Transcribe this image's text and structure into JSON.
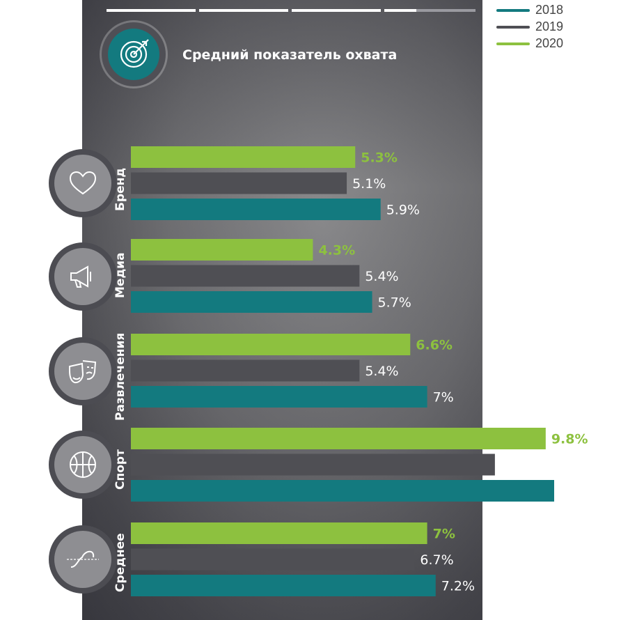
{
  "title": "Средний показатель охвата",
  "legend": [
    {
      "label": "2018",
      "color": "#137a7f"
    },
    {
      "label": "2019",
      "color": "#4f4f54"
    },
    {
      "label": "2020",
      "color": "#8dc13f"
    }
  ],
  "icons": {
    "title": "target-icon",
    "categories": [
      "heart-icon",
      "megaphone-icon",
      "theater-masks-icon",
      "basketball-icon",
      "wave-icon"
    ]
  },
  "chart_data": {
    "type": "bar",
    "orientation": "horizontal",
    "title": "Средний показатель охвата",
    "categories": [
      "Бренд",
      "Медиа",
      "Развлечения",
      "Спорт",
      "Среднее"
    ],
    "series": [
      {
        "name": "2020",
        "color": "#8dc13f",
        "values": [
          5.3,
          4.3,
          6.6,
          9.8,
          7
        ],
        "labels": [
          "5.3%",
          "4.3%",
          "6.6%",
          "9.8%",
          "7%"
        ]
      },
      {
        "name": "2019",
        "color": "#4f4f54",
        "values": [
          5.1,
          5.4,
          5.4,
          8.6,
          6.7
        ],
        "labels": [
          "5.1%",
          "5.4%",
          "5.4%",
          "8.6%",
          "6.7%"
        ]
      },
      {
        "name": "2018",
        "color": "#137a7f",
        "values": [
          5.9,
          5.7,
          7,
          10,
          7.2
        ],
        "labels": [
          "5.9%",
          "5.7%",
          "7%",
          "10%",
          "7.2%"
        ]
      }
    ],
    "xlim": [
      0,
      10
    ],
    "grid": false,
    "legend_position": "top-right"
  }
}
